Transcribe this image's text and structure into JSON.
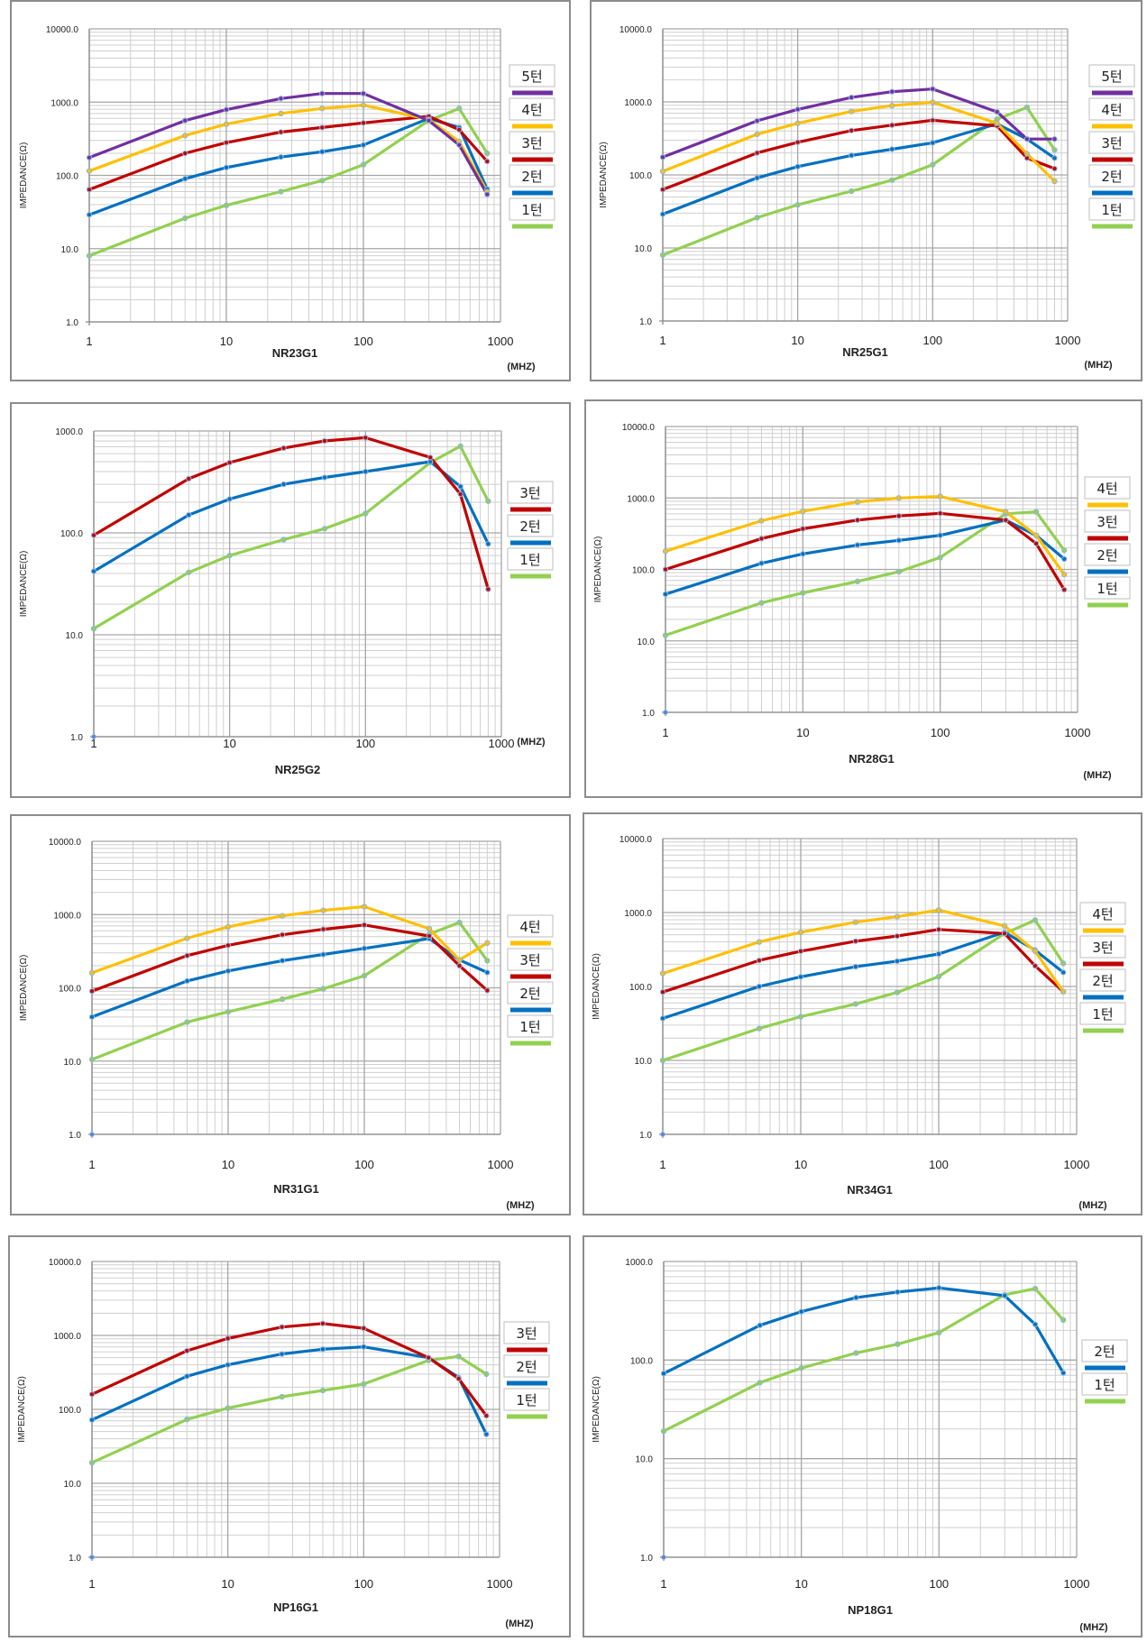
{
  "figure": {
    "y_axis_label": "IMPEDANCE(Ω)",
    "x_unit_label": "(MHZ)"
  },
  "chart_data": [
    {
      "type": "line",
      "title": "NR23G1",
      "xlabel": "(MHZ)",
      "ylabel": "IMPEDANCE(Ω)",
      "x_scale": "log",
      "y_scale": "log",
      "xlim": [
        1,
        1000
      ],
      "ylim": [
        1,
        10000
      ],
      "x_ticks": [
        "1",
        "10",
        "100",
        "1000"
      ],
      "y_ticks": [
        "1.0",
        "10.0",
        "100.0",
        "1000.0",
        "10000.0"
      ],
      "grid": true,
      "legend_position": "right",
      "x": [
        1,
        5,
        10,
        25,
        50,
        100,
        300,
        500,
        800
      ],
      "series": [
        {
          "name": "5턴",
          "color": "#7030a0",
          "values": [
            175,
            560,
            790,
            1120,
            1310,
            1310,
            560,
            260,
            55
          ]
        },
        {
          "name": "4턴",
          "color": "#ffc000",
          "values": [
            115,
            350,
            500,
            700,
            820,
            910,
            580,
            290,
            60
          ]
        },
        {
          "name": "3턴",
          "color": "#c00000",
          "values": [
            64,
            200,
            280,
            390,
            450,
            520,
            640,
            420,
            155
          ]
        },
        {
          "name": "2턴",
          "color": "#0070c0",
          "values": [
            29,
            90,
            128,
            178,
            210,
            260,
            600,
            450,
            65
          ]
        },
        {
          "name": "1턴",
          "color": "#92d050",
          "values": [
            8,
            26,
            39,
            60,
            85,
            140,
            560,
            820,
            200
          ]
        }
      ]
    },
    {
      "type": "line",
      "title": "NR25G1",
      "xlabel": "(MHZ)",
      "ylabel": "IMPEDANCE(Ω)",
      "x_scale": "log",
      "y_scale": "log",
      "xlim": [
        1,
        1000
      ],
      "ylim": [
        1,
        10000
      ],
      "x_ticks": [
        "1",
        "10",
        "100",
        "1000"
      ],
      "y_ticks": [
        "1.0",
        "10.0",
        "100.0",
        "1000.0",
        "10000.0"
      ],
      "grid": true,
      "legend_position": "right",
      "x": [
        1,
        5,
        10,
        25,
        50,
        100,
        300,
        500,
        800
      ],
      "series": [
        {
          "name": "5턴",
          "color": "#7030a0",
          "values": [
            175,
            550,
            790,
            1150,
            1380,
            1500,
            730,
            310,
            310
          ]
        },
        {
          "name": "4턴",
          "color": "#ffc000",
          "values": [
            112,
            360,
            510,
            740,
            890,
            990,
            510,
            195,
            82
          ]
        },
        {
          "name": "3턴",
          "color": "#c00000",
          "values": [
            63,
            200,
            280,
            405,
            480,
            560,
            470,
            170,
            122
          ]
        },
        {
          "name": "2턴",
          "color": "#0070c0",
          "values": [
            29,
            91,
            130,
            185,
            225,
            275,
            500,
            310,
            170
          ]
        },
        {
          "name": "1턴",
          "color": "#92d050",
          "values": [
            8,
            26,
            39,
            60,
            85,
            138,
            580,
            840,
            220
          ]
        }
      ]
    },
    {
      "type": "line",
      "title": "NR25G2",
      "xlabel": "(MHZ)",
      "ylabel": "IMPEDANCE(Ω)",
      "x_scale": "log",
      "y_scale": "log",
      "xlim": [
        1,
        1000
      ],
      "ylim": [
        1,
        1000
      ],
      "x_ticks": [
        "1",
        "10",
        "100",
        "1000"
      ],
      "y_ticks": [
        "1.0",
        "10.0",
        "100.0",
        "1000.0"
      ],
      "grid": true,
      "legend_position": "right",
      "x": [
        1,
        5,
        10,
        25,
        50,
        100,
        300,
        500,
        800
      ],
      "series": [
        {
          "name": "3턴",
          "color": "#c00000",
          "values": [
            95,
            340,
            490,
            680,
            800,
            860,
            550,
            240,
            28
          ]
        },
        {
          "name": "2턴",
          "color": "#0070c0",
          "values": [
            42,
            150,
            215,
            300,
            350,
            400,
            500,
            285,
            78
          ]
        },
        {
          "name": "1턴",
          "color": "#92d050",
          "values": [
            11.5,
            41,
            60,
            86,
            110,
            155,
            490,
            710,
            205
          ]
        }
      ]
    },
    {
      "type": "line",
      "title": "NR28G1",
      "xlabel": "(MHZ)",
      "ylabel": "IMPEDANCE(Ω)",
      "x_scale": "log",
      "y_scale": "log",
      "xlim": [
        1,
        1000
      ],
      "ylim": [
        1,
        10000
      ],
      "x_ticks": [
        "1",
        "10",
        "100",
        "1000"
      ],
      "y_ticks": [
        "1.0",
        "10.0",
        "100.0",
        "1000.0",
        "10000.0"
      ],
      "grid": true,
      "legend_position": "right",
      "x": [
        1,
        5,
        10,
        25,
        50,
        100,
        300,
        500,
        800
      ],
      "series": [
        {
          "name": "4턴",
          "color": "#ffc000",
          "values": [
            180,
            480,
            650,
            880,
            1000,
            1050,
            640,
            300,
            85
          ]
        },
        {
          "name": "3턴",
          "color": "#c00000",
          "values": [
            100,
            270,
            370,
            490,
            560,
            610,
            490,
            230,
            52
          ]
        },
        {
          "name": "2턴",
          "color": "#0070c0",
          "values": [
            45,
            122,
            165,
            220,
            255,
            300,
            490,
            300,
            140
          ]
        },
        {
          "name": "1턴",
          "color": "#92d050",
          "values": [
            12,
            34,
            47,
            68,
            93,
            147,
            600,
            640,
            185
          ]
        }
      ]
    },
    {
      "type": "line",
      "title": "NR31G1",
      "xlabel": "(MHZ)",
      "ylabel": "IMPEDANCE(Ω)",
      "x_scale": "log",
      "y_scale": "log",
      "xlim": [
        1,
        1000
      ],
      "ylim": [
        1,
        10000
      ],
      "x_ticks": [
        "1",
        "10",
        "100",
        "1000"
      ],
      "y_ticks": [
        "1.0",
        "10.0",
        "100.0",
        "1000.0",
        "10000.0"
      ],
      "grid": true,
      "legend_position": "right",
      "x": [
        1,
        5,
        10,
        25,
        50,
        100,
        300,
        500,
        800
      ],
      "series": [
        {
          "name": "4턴",
          "color": "#ffc000",
          "values": [
            160,
            475,
            680,
            960,
            1140,
            1280,
            640,
            240,
            410
          ]
        },
        {
          "name": "3턴",
          "color": "#c00000",
          "values": [
            90,
            275,
            380,
            530,
            630,
            720,
            510,
            200,
            92
          ]
        },
        {
          "name": "2턴",
          "color": "#0070c0",
          "values": [
            40,
            124,
            170,
            235,
            285,
            345,
            470,
            240,
            162
          ]
        },
        {
          "name": "1턴",
          "color": "#92d050",
          "values": [
            10.5,
            34,
            47,
            70,
            97,
            146,
            540,
            780,
            235
          ]
        }
      ]
    },
    {
      "type": "line",
      "title": "NR34G1",
      "xlabel": "(MHZ)",
      "ylabel": "IMPEDANCE(Ω)",
      "x_scale": "log",
      "y_scale": "log",
      "xlim": [
        1,
        1000
      ],
      "ylim": [
        1,
        10000
      ],
      "x_ticks": [
        "1",
        "10",
        "100",
        "1000"
      ],
      "y_ticks": [
        "1.0",
        "10.0",
        "100.0",
        "1000.0",
        "10000.0"
      ],
      "grid": true,
      "legend_position": "right",
      "x": [
        1,
        5,
        10,
        25,
        50,
        100,
        300,
        500,
        800
      ],
      "series": [
        {
          "name": "4턴",
          "color": "#ffc000",
          "values": [
            150,
            400,
            540,
            740,
            880,
            1080,
            660,
            300,
            85
          ]
        },
        {
          "name": "3턴",
          "color": "#c00000",
          "values": [
            84,
            225,
            300,
            410,
            480,
            590,
            520,
            190,
            85
          ]
        },
        {
          "name": "2턴",
          "color": "#0070c0",
          "values": [
            37,
            100,
            135,
            185,
            220,
            275,
            540,
            310,
            155
          ]
        },
        {
          "name": "1턴",
          "color": "#92d050",
          "values": [
            10,
            27,
            39,
            58,
            83,
            136,
            520,
            790,
            205
          ]
        }
      ]
    },
    {
      "type": "line",
      "title": "NP16G1",
      "xlabel": "(MHZ)",
      "ylabel": "IMPEDANCE(Ω)",
      "x_scale": "log",
      "y_scale": "log",
      "xlim": [
        1,
        1000
      ],
      "ylim": [
        1,
        10000
      ],
      "x_ticks": [
        "1",
        "10",
        "100",
        "1000"
      ],
      "y_ticks": [
        "1.0",
        "10.0",
        "100.0",
        "1000.0",
        "10000.0"
      ],
      "grid": true,
      "legend_position": "right",
      "x": [
        1,
        5,
        10,
        25,
        50,
        100,
        300,
        500,
        800
      ],
      "series": [
        {
          "name": "3턴",
          "color": "#c00000",
          "values": [
            160,
            620,
            910,
            1300,
            1450,
            1250,
            500,
            260,
            82
          ]
        },
        {
          "name": "2턴",
          "color": "#0070c0",
          "values": [
            72,
            280,
            400,
            560,
            650,
            700,
            500,
            270,
            46
          ]
        },
        {
          "name": "1턴",
          "color": "#92d050",
          "values": [
            19,
            73,
            104,
            148,
            180,
            220,
            460,
            520,
            300
          ]
        }
      ]
    },
    {
      "type": "line",
      "title": "NP18G1",
      "xlabel": "(MHZ)",
      "ylabel": "IMPEDANCE(Ω)",
      "x_scale": "log",
      "y_scale": "log",
      "xlim": [
        1,
        1000
      ],
      "ylim": [
        1,
        1000
      ],
      "x_ticks": [
        "1",
        "10",
        "100",
        "1000"
      ],
      "y_ticks": [
        "1.0",
        "10.0",
        "100.0",
        "1000.0"
      ],
      "grid": true,
      "legend_position": "right",
      "x": [
        1,
        5,
        10,
        25,
        50,
        100,
        300,
        500,
        800
      ],
      "series": [
        {
          "name": "2턴",
          "color": "#0070c0",
          "values": [
            73,
            225,
            310,
            430,
            490,
            540,
            450,
            230,
            74
          ]
        },
        {
          "name": "1턴",
          "color": "#92d050",
          "values": [
            19,
            59,
            83,
            118,
            145,
            190,
            460,
            530,
            255
          ]
        }
      ]
    }
  ]
}
